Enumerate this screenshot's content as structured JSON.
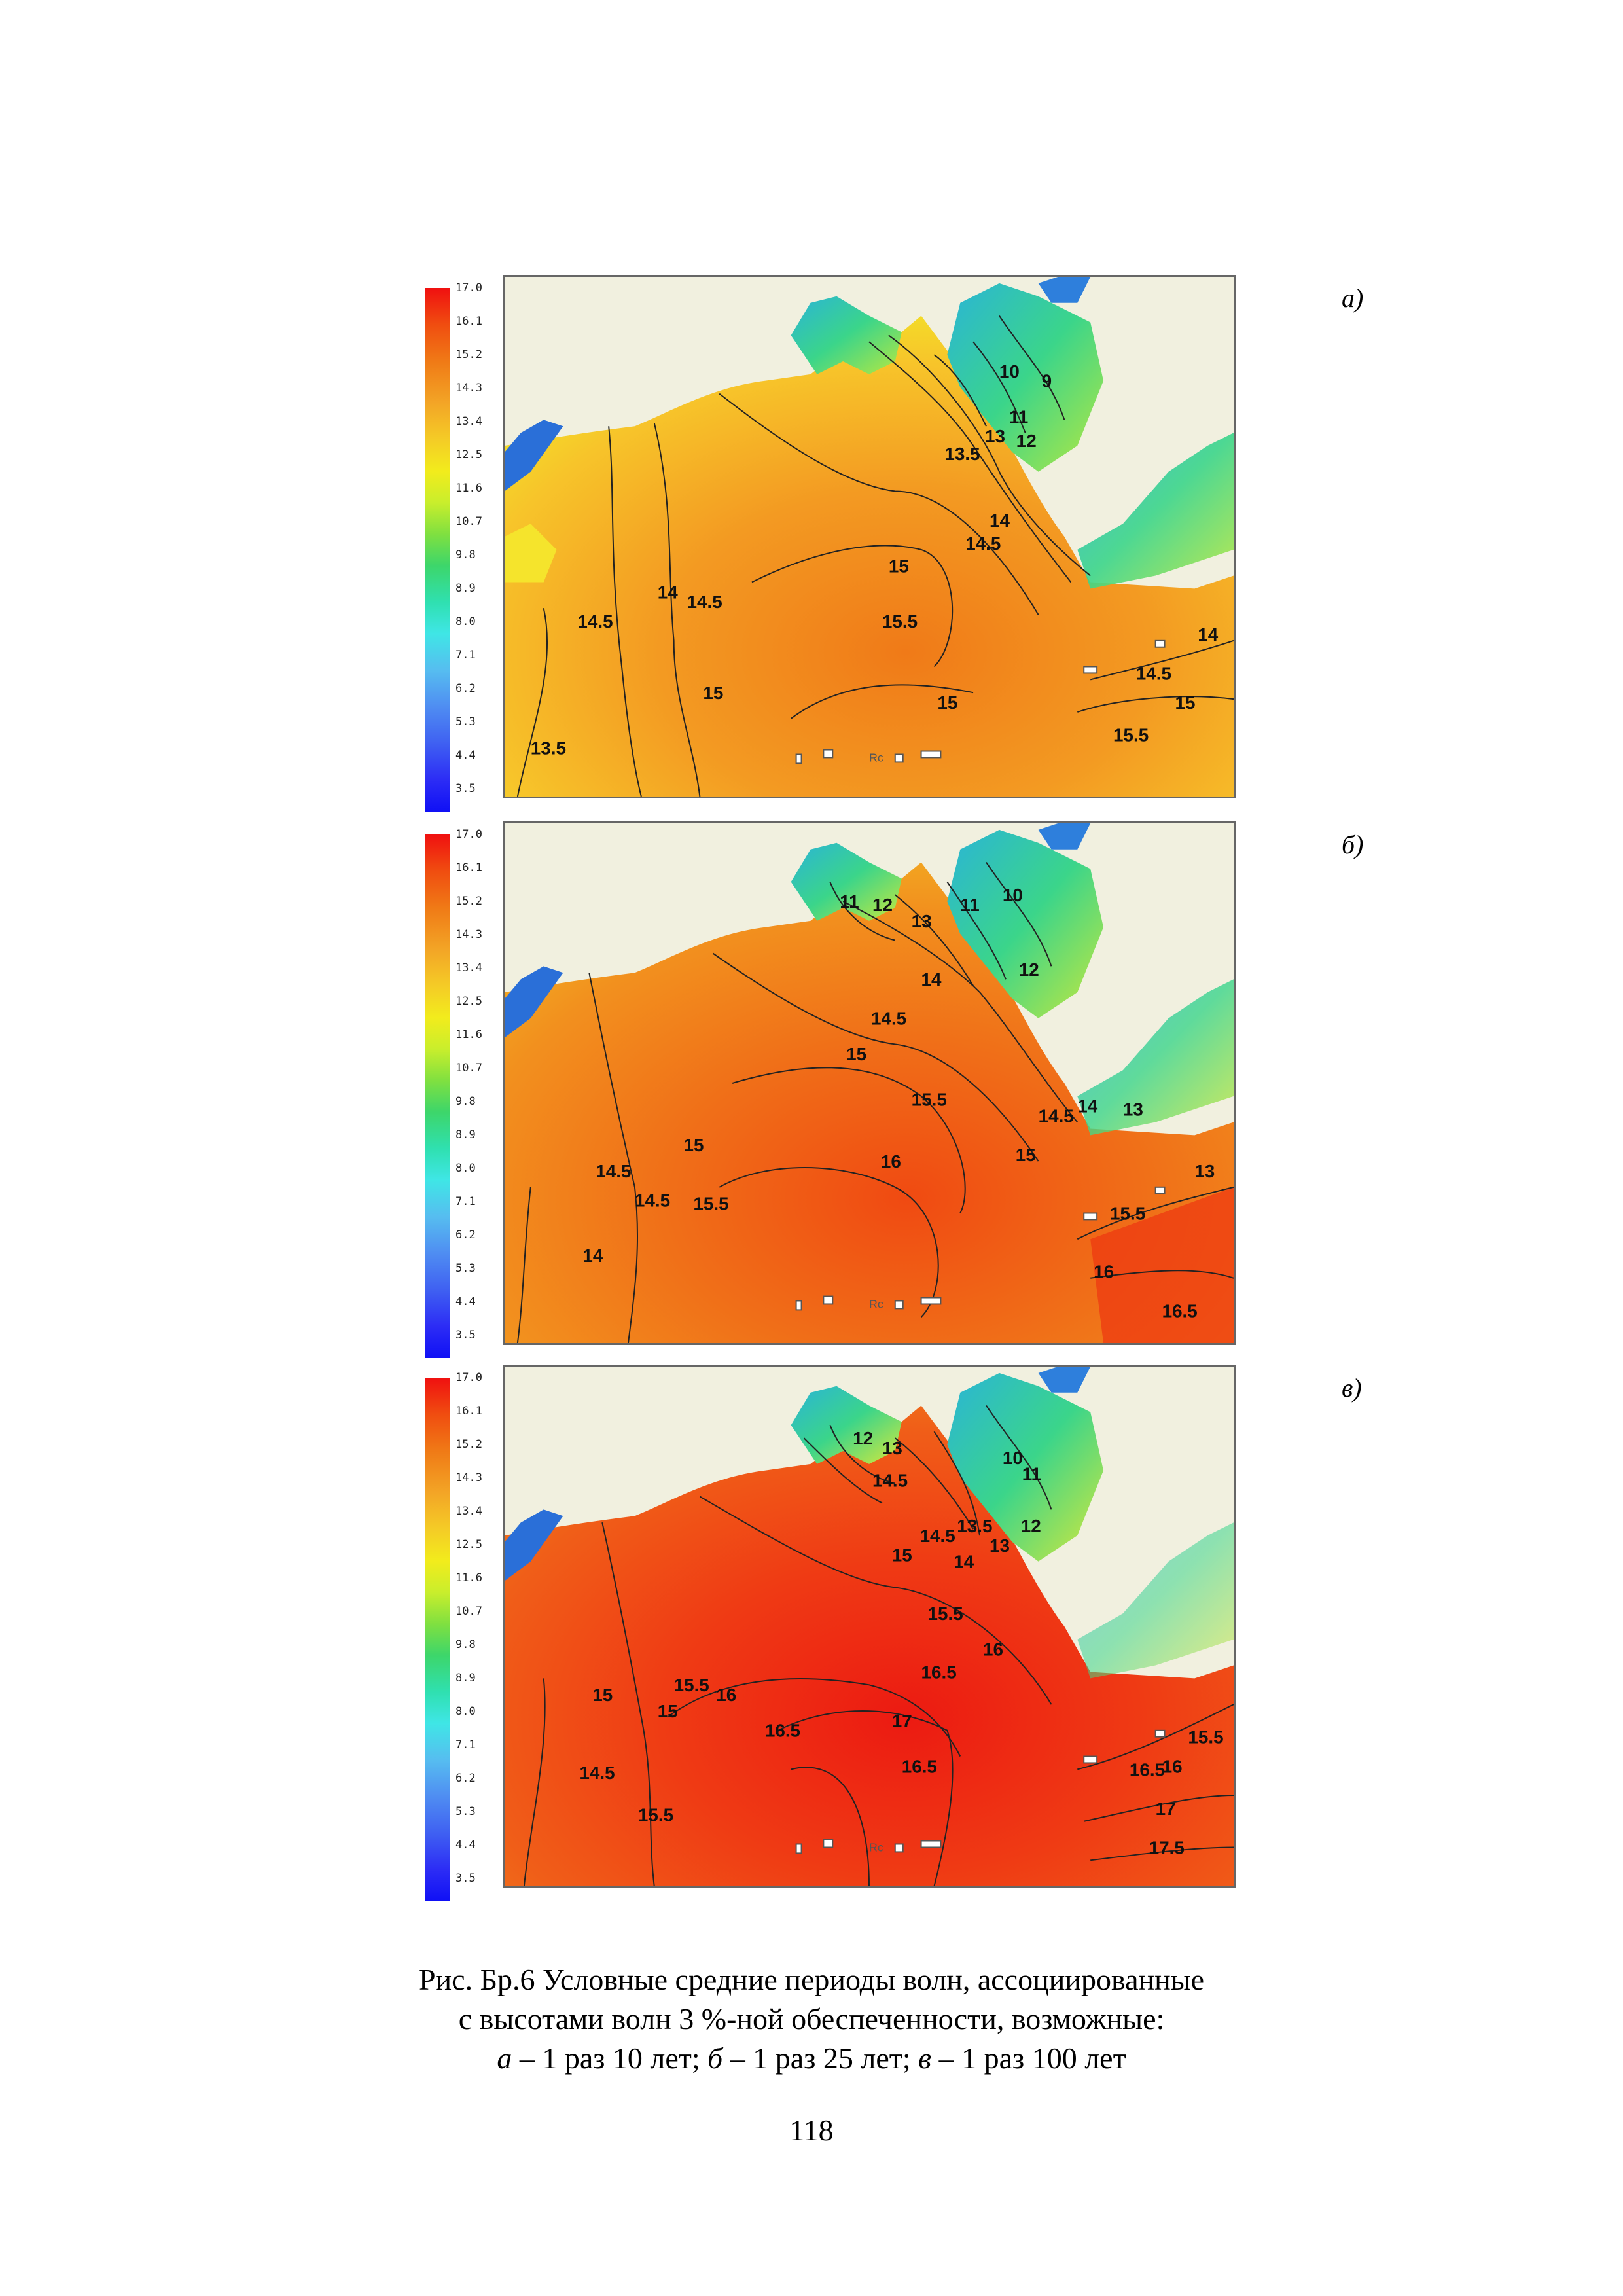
{
  "legend": {
    "ticks": [
      "17.0",
      "16.1",
      "15.2",
      "14.3",
      "13.4",
      "12.5",
      "11.6",
      "10.7",
      "9.8",
      "8.9",
      "8.0",
      "7.1",
      "6.2",
      "5.3",
      "4.4",
      "3.5"
    ]
  },
  "panels": [
    {
      "tag": "а)",
      "labels": [
        "10",
        "9",
        "11",
        "13",
        "12",
        "13.5",
        "14",
        "14.5",
        "15",
        "15.5",
        "14",
        "14.5",
        "14.5",
        "15",
        "15",
        "13.5",
        "14",
        "14.5",
        "15",
        "15.5"
      ]
    },
    {
      "tag": "б)",
      "labels": [
        "11",
        "12",
        "11",
        "10",
        "13",
        "12",
        "14",
        "14.5",
        "15",
        "15.5",
        "14.5",
        "14",
        "13",
        "15",
        "16",
        "15.5",
        "15",
        "14.5",
        "14.5",
        "15.5",
        "16",
        "14",
        "16.5"
      ]
    },
    {
      "tag": "в)",
      "labels": [
        "12",
        "13",
        "10",
        "11",
        "14.5",
        "13.5",
        "14.5",
        "12",
        "15",
        "14",
        "13",
        "15.5",
        "16",
        "16.5",
        "16",
        "15.5",
        "15",
        "15",
        "16",
        "16.5",
        "17",
        "16.5",
        "14.5",
        "15.5",
        "16.5",
        "17",
        "17.5",
        "15.5",
        "16"
      ]
    }
  ],
  "map_marker_text": "Rc",
  "caption": {
    "line1": "Рис. Бр.6 Условные средние периоды волн, ассоциированные",
    "line2": "с высотами волн 3 %-ной обеспеченности, возможные:",
    "line3": {
      "a_letter": "а",
      "a_text": " – 1 раз 10 лет; ",
      "b_letter": "б",
      "b_text": " – 1 раз 25 лет; ",
      "c_letter": "в",
      "c_text": " – 1 раз 100 лет"
    }
  },
  "page_number": "118"
}
